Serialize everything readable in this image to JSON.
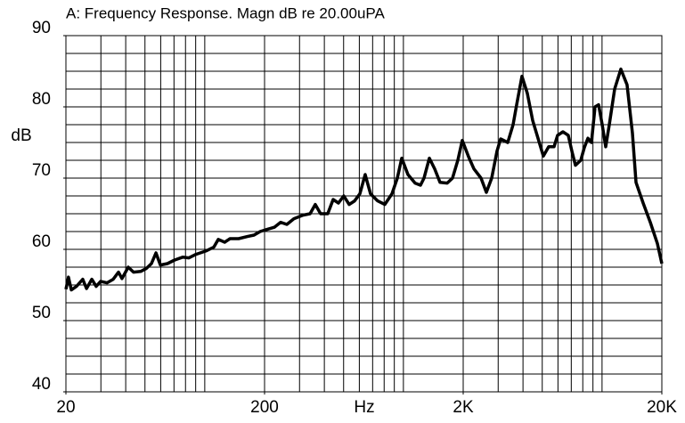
{
  "chart_data": {
    "type": "line",
    "title": "A: Frequency Response. Magn dB re 20.00uPA",
    "x_label": "Hz",
    "y_label": "dB",
    "x_log": true,
    "grid": true,
    "xlim": [
      20,
      20000
    ],
    "ylim": [
      40,
      90
    ],
    "xticks": [
      20,
      200,
      {
        "value": 2000,
        "label": "2K"
      },
      {
        "value": 20000,
        "label": "20K"
      }
    ],
    "yticks": [
      40,
      50,
      60,
      70,
      80,
      90
    ],
    "xgrid": [
      20,
      30,
      40,
      50,
      60,
      70,
      80,
      90,
      100,
      200,
      300,
      400,
      500,
      600,
      700,
      800,
      900,
      1000,
      2000,
      3000,
      4000,
      5000,
      6000,
      7000,
      8000,
      9000,
      10000,
      20000
    ],
    "ygrid": [
      40,
      42.5,
      45,
      47.5,
      50,
      52.5,
      55,
      57.5,
      60,
      62.5,
      65,
      67.5,
      70,
      72.5,
      75,
      77.5,
      80,
      82.5,
      85,
      87.5,
      90
    ],
    "series": [
      {
        "color": "#000000",
        "x": [
          20,
          20.6,
          21.3,
          22.6,
          24.3,
          25.4,
          27.0,
          28.4,
          29.9,
          32.2,
          34.6,
          36.8,
          38.3,
          41.2,
          43.8,
          47.6,
          50.7,
          53.9,
          56.8,
          59.8,
          64.9,
          70.5,
          77.4,
          83.2,
          90.3,
          102,
          111,
          117,
          126,
          134,
          148,
          164,
          177,
          190,
          206,
          224,
          241,
          259,
          281,
          312,
          339,
          360,
          383,
          416,
          443,
          471,
          501,
          533,
          568,
          604,
          642,
          683,
          742,
          806,
          876,
          932,
          981,
          1054,
          1145,
          1219,
          1270,
          1351,
          1437,
          1529,
          1661,
          1767,
          1879,
          1979,
          2128,
          2264,
          2459,
          2616,
          2783,
          2960,
          3086,
          3352,
          3566,
          3717,
          3953,
          4206,
          4474,
          4760,
          5064,
          5387,
          5731,
          5973,
          6355,
          6760,
          7048,
          7345,
          7815,
          8146,
          8490,
          8846,
          9222,
          9608,
          10020,
          10435,
          10878,
          11573,
          12435,
          13364,
          14223,
          14826,
          16103,
          17494,
          18999,
          20000
        ],
        "values": [
          54.4,
          56.1,
          54.3,
          54.8,
          55.8,
          54.5,
          55.8,
          54.8,
          55.5,
          55.3,
          55.8,
          56.8,
          55.9,
          57.5,
          56.8,
          56.9,
          57.3,
          58,
          59.5,
          57.8,
          58,
          58.5,
          58.9,
          58.8,
          59.3,
          59.8,
          60.3,
          61.4,
          61,
          61.5,
          61.5,
          61.8,
          62,
          62.5,
          62.8,
          63.1,
          63.8,
          63.5,
          64.3,
          64.8,
          65,
          66.3,
          65,
          65,
          67,
          66.5,
          67.5,
          66.3,
          66.8,
          67.8,
          70.5,
          67.8,
          66.8,
          66.3,
          67.8,
          70,
          72.8,
          70.5,
          69.3,
          69,
          70,
          72.8,
          71.3,
          69.4,
          69.3,
          70,
          72.5,
          75.3,
          73,
          71.3,
          70,
          68,
          70,
          73.8,
          75.5,
          75,
          77.5,
          80.3,
          84.3,
          81.9,
          78.1,
          75.6,
          73.1,
          74.4,
          74.4,
          76,
          76.5,
          76,
          73.8,
          71.8,
          72.5,
          74.3,
          75.6,
          75,
          80,
          80.3,
          77.5,
          74.4,
          77.5,
          82.5,
          85.3,
          83.1,
          76.3,
          69.4,
          66.5,
          63.8,
          60.8,
          58
        ]
      }
    ]
  }
}
